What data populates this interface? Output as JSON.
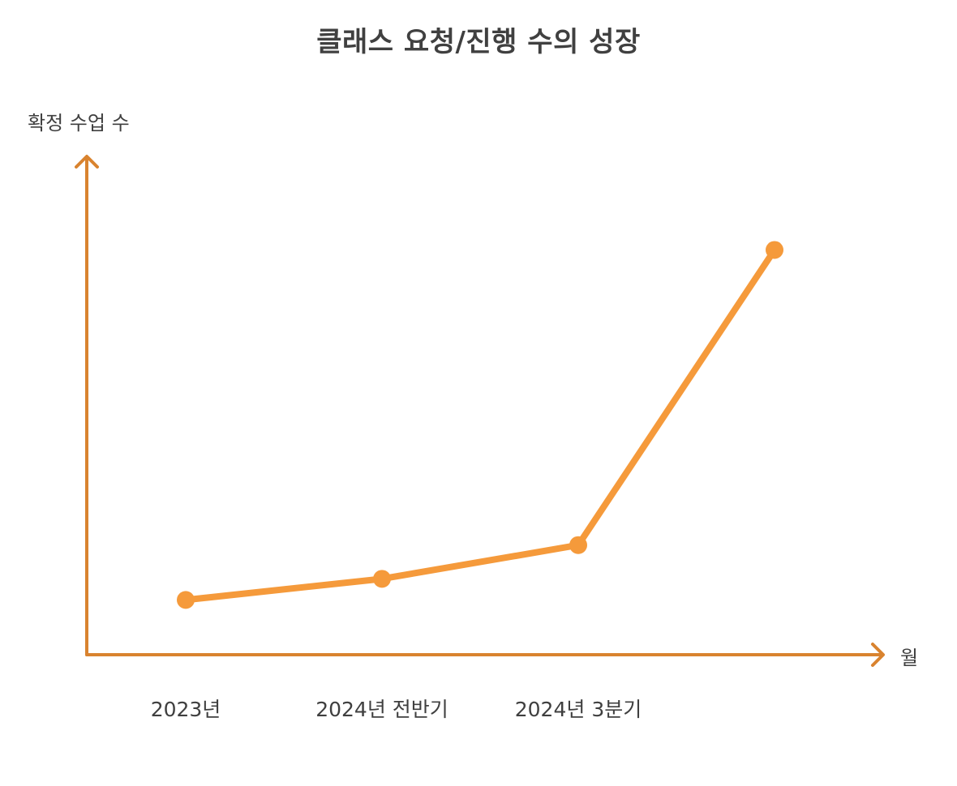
{
  "chart_data": {
    "type": "line",
    "title": "클래스 요청/진행 수의 성장",
    "xlabel": "월",
    "ylabel": "확정 수업 수",
    "categories": [
      "2023년",
      "2024년 전반기",
      "2024년 3분기",
      ""
    ],
    "series": [
      {
        "values": [
          13,
          18,
          26,
          96
        ]
      }
    ],
    "ylim": [
      0,
      118
    ],
    "grid": false,
    "legend": "none",
    "colors": {
      "axis": "#d9832f",
      "line": "#f59a3b",
      "text": "#3f3f3f"
    }
  }
}
